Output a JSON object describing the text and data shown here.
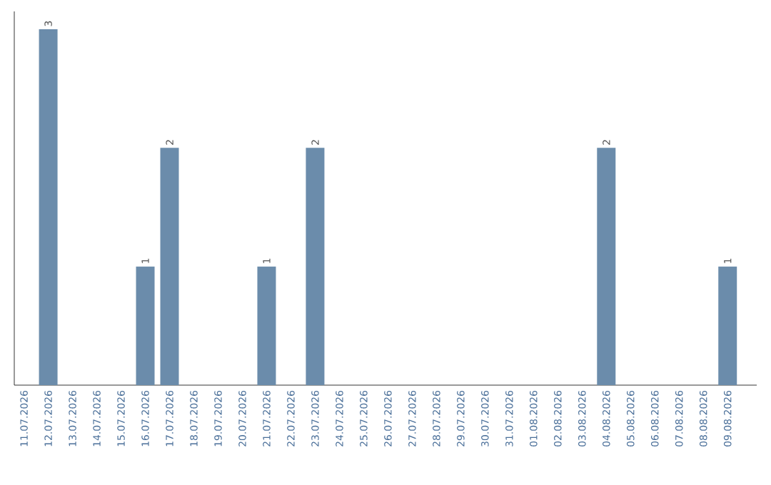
{
  "chart_data": {
    "type": "bar",
    "categories": [
      "11.07.2026",
      "12.07.2026",
      "13.07.2026",
      "14.07.2026",
      "15.07.2026",
      "16.07.2026",
      "17.07.2026",
      "18.07.2026",
      "19.07.2026",
      "20.07.2026",
      "21.07.2026",
      "22.07.2026",
      "23.07.2026",
      "24.07.2026",
      "25.07.2026",
      "26.07.2026",
      "27.07.2026",
      "28.07.2026",
      "29.07.2026",
      "30.07.2026",
      "31.07.2026",
      "01.08.2026",
      "02.08.2026",
      "03.08.2026",
      "04.08.2026",
      "05.08.2026",
      "06.08.2026",
      "07.08.2026",
      "08.08.2026",
      "09.08.2026"
    ],
    "values": [
      0,
      3,
      0,
      0,
      0,
      1,
      2,
      0,
      0,
      0,
      1,
      0,
      2,
      0,
      0,
      0,
      0,
      0,
      0,
      0,
      0,
      0,
      0,
      0,
      2,
      0,
      0,
      0,
      0,
      1
    ],
    "value_labels": [
      null,
      "3",
      null,
      null,
      null,
      "1",
      "2",
      null,
      null,
      null,
      "1",
      null,
      "2",
      null,
      null,
      null,
      null,
      null,
      null,
      null,
      null,
      null,
      null,
      null,
      "2",
      null,
      null,
      null,
      null,
      "1"
    ],
    "color": "#6b8cab",
    "tick_labels": "x"
  }
}
